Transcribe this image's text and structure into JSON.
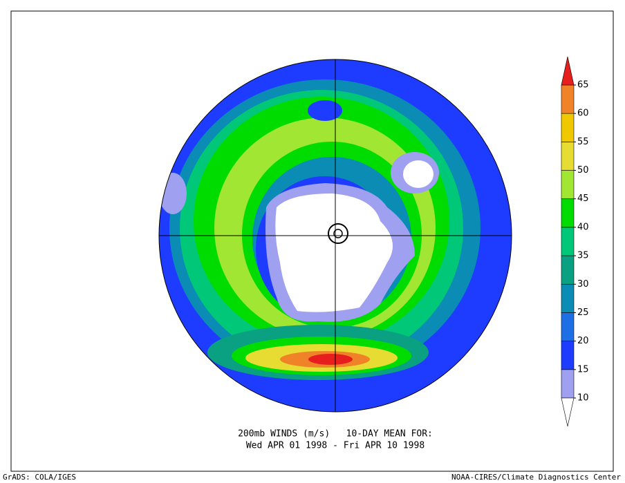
{
  "caption": {
    "line1": "200mb WINDS (m/s)   10-DAY MEAN FOR:",
    "line2": "Wed APR 01 1998 - Fri APR 10 1998"
  },
  "footer": {
    "left": "GrADS: COLA/IGES",
    "right": "NOAA-CIRES/Climate Diagnostics Center"
  },
  "colorbar": {
    "levels": [
      10,
      15,
      20,
      25,
      30,
      35,
      40,
      45,
      50,
      55,
      60,
      65
    ],
    "colors": [
      "#ffffff",
      "#a0a0f0",
      "#1e3cff",
      "#1e6ee6",
      "#0a8cb4",
      "#0aa082",
      "#00c878",
      "#00dc00",
      "#a0e632",
      "#e6dc32",
      "#f0c800",
      "#f08228",
      "#e61e1e"
    ]
  }
}
